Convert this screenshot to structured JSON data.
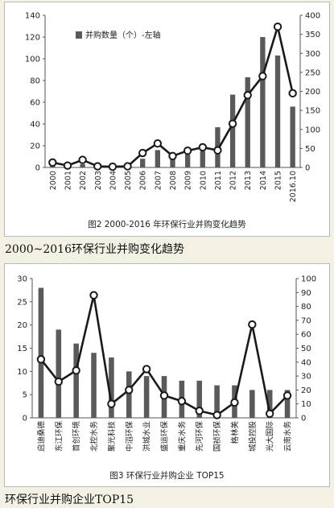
{
  "chart_data": [
    {
      "type": "bar",
      "figure_caption": "图2  2000-2016 年环保行业并购变化趋势",
      "categories": [
        "2000",
        "2001",
        "2002",
        "2003",
        "2004",
        "2005",
        "2006",
        "2007",
        "2008",
        "2009",
        "2010",
        "2011",
        "2012",
        "2013",
        "2014",
        "2015",
        "2016.10"
      ],
      "series": [
        {
          "name": "并购数量（个）-左轴",
          "axis": "left",
          "style": "bar",
          "values": [
            2,
            1,
            3,
            1,
            1,
            1,
            8,
            16,
            9,
            12,
            15,
            37,
            67,
            83,
            120,
            103,
            56
          ]
        },
        {
          "axis": "right",
          "style": "line",
          "values": [
            13,
            5,
            20,
            3,
            2,
            3,
            38,
            63,
            30,
            44,
            53,
            45,
            115,
            190,
            240,
            370,
            195
          ]
        }
      ],
      "ylim_left": [
        0,
        140
      ],
      "yticks_left": [
        0,
        20,
        40,
        60,
        80,
        100,
        120,
        140
      ],
      "ylim_right": [
        0,
        400
      ],
      "yticks_right": [
        0,
        50,
        100,
        150,
        200,
        250,
        300,
        350,
        400
      ],
      "legend_position": "top-left",
      "grid": false
    },
    {
      "type": "bar",
      "figure_caption": "图3  环保行业并购企业 TOP15",
      "categories": [
        "启迪桑德",
        "东江环保",
        "首创环境",
        "北控水务",
        "聚光科技",
        "中滔环保",
        "洪城水业",
        "盛运环保",
        "重庆水务",
        "先河环保",
        "国祯环保",
        "格林美",
        "城投控股",
        "光大国际",
        "云南水务"
      ],
      "series": [
        {
          "axis": "left",
          "style": "bar",
          "values": [
            28,
            19,
            16,
            14,
            13,
            10,
            9,
            9,
            8,
            8,
            7,
            7,
            6,
            6,
            6
          ]
        },
        {
          "axis": "right",
          "style": "line",
          "values": [
            42,
            26,
            34,
            88,
            10,
            20,
            35,
            16,
            12,
            5,
            2,
            11,
            67,
            3,
            16
          ]
        }
      ],
      "ylim_left": [
        0,
        30
      ],
      "yticks_left": [
        0,
        5,
        10,
        15,
        20,
        25,
        30
      ],
      "ylim_right": [
        0,
        100
      ],
      "yticks_right": [
        0,
        10,
        20,
        30,
        40,
        50,
        60,
        70,
        80,
        90,
        100
      ],
      "grid": false
    }
  ],
  "captions": {
    "chart1": "2000~2016环保行业并购变化趋势",
    "chart2": "环保行业并购企业TOP15"
  },
  "colors": {
    "bar": "#5a5a5a",
    "line": "#1a1a1a",
    "marker_fill": "#ffffff",
    "page_bg": "#f3f1e4"
  }
}
